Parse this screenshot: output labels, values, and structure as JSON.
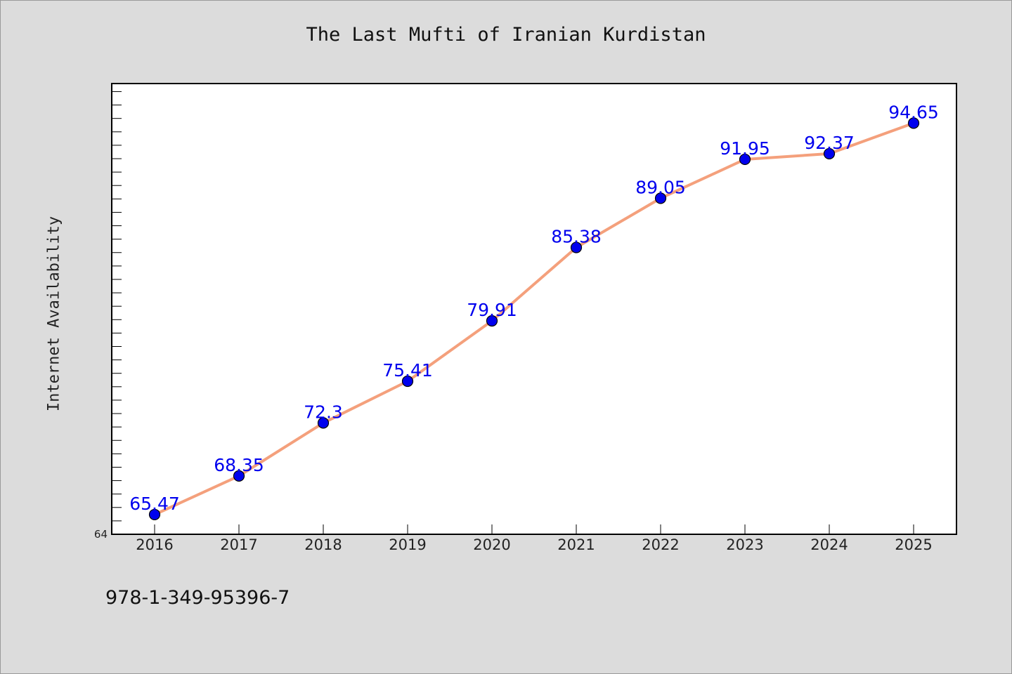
{
  "page": {
    "title": "The Last Mufti of Iranian Kurdistan",
    "footer": "978-1-349-95396-7"
  },
  "chart_data": {
    "type": "line",
    "title": "The Last Mufti of Iranian Kurdistan",
    "xlabel": "",
    "ylabel": "Internet Availability",
    "categories": [
      "2016",
      "2017",
      "2018",
      "2019",
      "2020",
      "2021",
      "2022",
      "2023",
      "2024",
      "2025"
    ],
    "values": [
      65.47,
      68.35,
      72.3,
      75.41,
      79.91,
      85.38,
      89.05,
      91.95,
      92.37,
      94.65
    ],
    "data_labels": [
      "65.47",
      "68.35",
      "72.3",
      "75.41",
      "79.91",
      "85.38",
      "89.05",
      "91.95",
      "92.37",
      "94.65"
    ],
    "ylim": [
      64,
      97.6
    ],
    "y_tick_labels": [
      "64"
    ],
    "grid": false,
    "legend": "none",
    "colors": {
      "line": "#f4a07c",
      "marker": "#0000ee",
      "data_label": "#0000ee",
      "plot_background": "#ffffff",
      "figure_background": "#dcdcdc"
    }
  }
}
